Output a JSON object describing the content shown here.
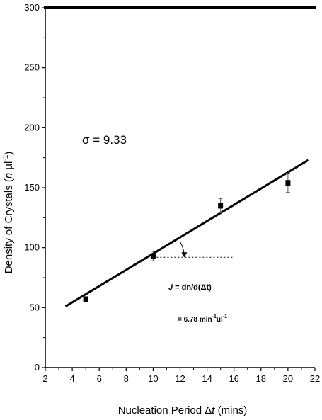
{
  "chart_data": {
    "type": "scatter",
    "xlabel": "Nucleation Period Δt (mins)",
    "xlabel_parts": {
      "prefix": "Nucleation Period Δ",
      "italic": "t",
      "suffix": " (mins)"
    },
    "ylabel": "Density of Crystals (n µl⁻¹)",
    "ylabel_parts": {
      "prefix": "Density of Crystals (",
      "italic": "n",
      "suffix": " µl",
      "sup": "-1",
      "close": ")"
    },
    "xlim": [
      2,
      22
    ],
    "ylim": [
      0,
      300
    ],
    "x_ticks": [
      2,
      4,
      6,
      8,
      10,
      12,
      14,
      16,
      18,
      20,
      22
    ],
    "y_ticks": [
      0,
      50,
      100,
      150,
      200,
      250,
      300
    ],
    "grid": false,
    "series": [
      {
        "x": [
          5,
          10,
          15,
          20
        ],
        "y": [
          57,
          93,
          135,
          154
        ],
        "yerr": [
          2,
          4,
          6,
          8
        ],
        "marker": "square",
        "color": "#000000"
      }
    ],
    "fit_line": {
      "x": [
        3.5,
        21.5
      ],
      "y": [
        51,
        173
      ],
      "color": "#000000"
    },
    "reference_line": {
      "x": [
        10,
        16
      ],
      "y": [
        92,
        92
      ],
      "style": "dotted"
    },
    "annotations": {
      "sigma": "σ = 9.33",
      "rate_formula": "J = dn/d(Δt)",
      "rate_formula_parts": {
        "italic": "J",
        "rest": " = dn/d(Δt)"
      },
      "rate_value": "= 6.78 min⁻¹ul⁻¹",
      "rate_value_parts": {
        "prefix": "= 6.78 min",
        "sup1": "-1",
        "mid": "ul",
        "sup2": "-1"
      }
    }
  }
}
